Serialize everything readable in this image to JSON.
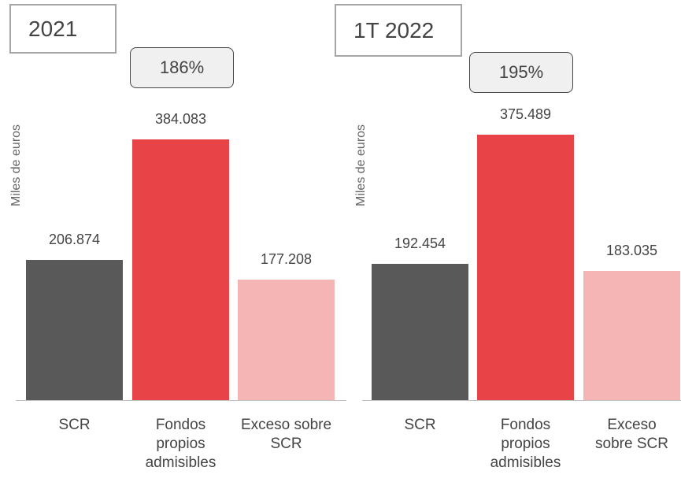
{
  "chart_data": [
    {
      "type": "bar",
      "title": "2021",
      "annotation": "186%",
      "y_label": "Miles de euros",
      "categories": [
        "SCR",
        "Fondos propios admisibles",
        "Exceso sobre SCR"
      ],
      "values": [
        206874,
        384083,
        177208
      ],
      "value_labels": [
        "206.874",
        "384.083",
        "177.208"
      ],
      "colors": [
        "#595959",
        "#e84346",
        "#f5b5b5"
      ]
    },
    {
      "type": "bar",
      "title": "1T 2022",
      "annotation": "195%",
      "y_label": "Miles de euros",
      "categories": [
        "SCR",
        "Fondos propios admisibles",
        "Exceso sobre SCR"
      ],
      "values": [
        192454,
        375489,
        183035
      ],
      "value_labels": [
        "192.454",
        "375.489",
        "183.035"
      ],
      "colors": [
        "#595959",
        "#e84346",
        "#f5b5b5"
      ]
    }
  ]
}
